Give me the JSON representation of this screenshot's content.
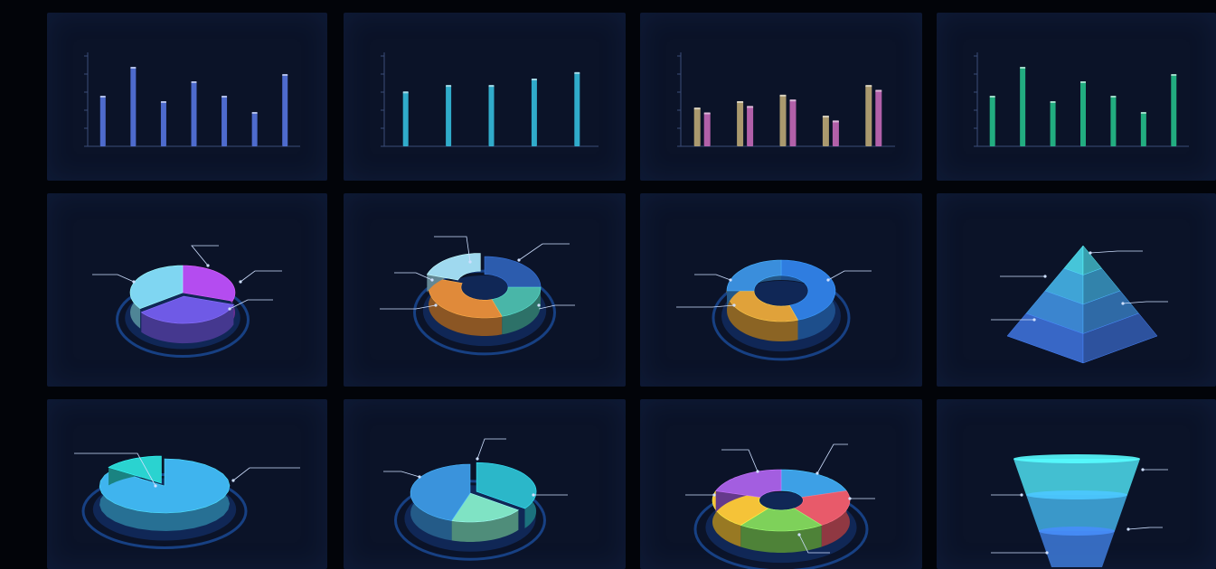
{
  "chart_data": [
    {
      "type": "bar",
      "categories": [
        "",
        "",
        "",
        "",
        "",
        "",
        ""
      ],
      "values": [
        14,
        22,
        12.5,
        18,
        14,
        9.5,
        20
      ],
      "ylim": [
        0,
        25
      ],
      "color": "#5b7bea"
    },
    {
      "type": "bar",
      "categories": [
        "",
        "",
        "",
        "",
        ""
      ],
      "values": [
        17,
        19,
        19,
        21,
        23
      ],
      "ylim": [
        0,
        28
      ],
      "color": "#37c7e6"
    },
    {
      "type": "bar",
      "categories": [
        "",
        "",
        "",
        "",
        ""
      ],
      "series": [
        {
          "values": [
            12,
            14,
            16,
            9.5,
            19
          ],
          "color": "#c7b27a"
        },
        {
          "values": [
            10.5,
            12.5,
            14.5,
            8,
            17.5
          ],
          "color": "#d06fc0"
        }
      ],
      "ylim": [
        0,
        28
      ]
    },
    {
      "type": "bar",
      "categories": [
        "",
        "",
        "",
        "",
        "",
        "",
        ""
      ],
      "values": [
        14,
        22,
        12.5,
        18,
        14,
        9.5,
        20
      ],
      "ylim": [
        0,
        25
      ],
      "color": "#27c98f"
    },
    {
      "type": "pie",
      "values": [
        30,
        35,
        35
      ],
      "colors": [
        "#b44cf0",
        "#6f5ae6",
        "#7fd6f2"
      ]
    },
    {
      "type": "pie",
      "values": [
        25,
        20,
        35,
        20
      ],
      "colors": [
        "#2c5cae",
        "#49b6a8",
        "#e08a3a",
        "#9fd9ef"
      ]
    },
    {
      "type": "pie",
      "values": [
        45,
        30,
        25
      ],
      "colors": [
        "#2f7de0",
        "#e0a23a",
        "#3a8edc"
      ]
    },
    {
      "type": "pyramid",
      "values": [
        25,
        25,
        25,
        25
      ],
      "colors": [
        "#46c5d9",
        "#3fa4d6",
        "#3b85cf",
        "#3867c6"
      ]
    },
    {
      "type": "pie",
      "values": [
        85,
        15
      ],
      "colors": [
        "#3fb4ee",
        "#2ad3d0"
      ]
    },
    {
      "type": "pie",
      "values": [
        35,
        20,
        45
      ],
      "colors": [
        "#2bb7c9",
        "#7fe3c4",
        "#3a93dc"
      ]
    },
    {
      "type": "pie",
      "values": [
        20,
        20,
        20,
        20,
        20
      ],
      "colors": [
        "#3da0e6",
        "#e85a6a",
        "#7ed15a",
        "#f5c338",
        "#a35ee0"
      ]
    },
    {
      "type": "funnel",
      "values": [
        40,
        30,
        20
      ],
      "colors": [
        "#49d3e3",
        "#3fa7da",
        "#3b76d0"
      ]
    }
  ]
}
